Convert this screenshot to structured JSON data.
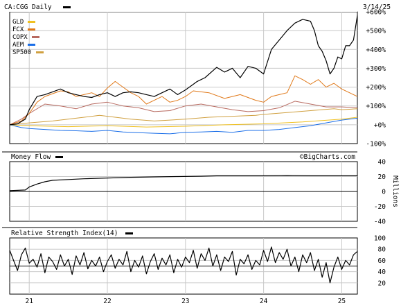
{
  "chart_data": [
    {
      "type": "line",
      "title": "CA:CGG Daily",
      "date": "3/14/25",
      "y_axis_side": "right",
      "ylim": [
        -100,
        600
      ],
      "y_ticks": [
        -100,
        0,
        100,
        200,
        300,
        400,
        500,
        600
      ],
      "y_tick_labels": [
        "-100%",
        "+0%",
        "+100%",
        "+200%",
        "+300%",
        "+400%",
        "+500%",
        "+600%"
      ],
      "grid": true,
      "legend_position": "top-left",
      "x_ticks": [
        2021,
        2022,
        2023,
        2024,
        2025
      ],
      "x_tick_labels": [
        "21",
        "22",
        "23",
        "24",
        "25"
      ],
      "xlim": [
        2020.75,
        2025.2
      ],
      "series": [
        {
          "name": "CA:CGG",
          "color": "#000000",
          "x": [
            2020.75,
            2020.85,
            2020.95,
            2021.0,
            2021.1,
            2021.2,
            2021.3,
            2021.4,
            2021.5,
            2021.6,
            2021.7,
            2021.8,
            2021.9,
            2022.0,
            2022.1,
            2022.2,
            2022.3,
            2022.4,
            2022.5,
            2022.6,
            2022.7,
            2022.8,
            2022.9,
            2023.0,
            2023.1,
            2023.15,
            2023.25,
            2023.4,
            2023.5,
            2023.6,
            2023.7,
            2023.8,
            2023.9,
            2024.0,
            2024.1,
            2024.2,
            2024.3,
            2024.4,
            2024.5,
            2024.6,
            2024.65,
            2024.7,
            2024.75,
            2024.8,
            2024.85,
            2024.9,
            2024.95,
            2025.0,
            2025.05,
            2025.1,
            2025.15,
            2025.2
          ],
          "y": [
            0,
            5,
            30,
            80,
            150,
            160,
            175,
            190,
            170,
            160,
            150,
            145,
            160,
            170,
            150,
            170,
            175,
            170,
            160,
            150,
            170,
            190,
            160,
            185,
            215,
            230,
            250,
            305,
            280,
            300,
            250,
            310,
            300,
            270,
            400,
            450,
            500,
            540,
            560,
            550,
            500,
            420,
            390,
            340,
            270,
            300,
            360,
            350,
            420,
            420,
            450,
            580
          ]
        },
        {
          "name": "GLD",
          "color": "#f0c020",
          "x": [
            2020.75,
            2021.0,
            2021.5,
            2022.0,
            2022.5,
            2023.0,
            2023.5,
            2024.0,
            2024.5,
            2025.0,
            2025.2
          ],
          "y": [
            0,
            -5,
            -10,
            -5,
            -12,
            -8,
            0,
            5,
            15,
            30,
            40
          ]
        },
        {
          "name": "FCX",
          "color": "#e07818",
          "x": [
            2020.75,
            2020.9,
            2021.0,
            2021.1,
            2021.2,
            2021.4,
            2021.5,
            2021.6,
            2021.7,
            2021.8,
            2021.9,
            2022.0,
            2022.1,
            2022.2,
            2022.3,
            2022.4,
            2022.5,
            2022.6,
            2022.7,
            2022.8,
            2022.9,
            2023.0,
            2023.1,
            2023.3,
            2023.5,
            2023.7,
            2023.9,
            2024.0,
            2024.1,
            2024.2,
            2024.3,
            2024.4,
            2024.5,
            2024.6,
            2024.7,
            2024.8,
            2024.9,
            2025.0,
            2025.1,
            2025.2
          ],
          "y": [
            0,
            20,
            60,
            120,
            150,
            180,
            175,
            150,
            160,
            170,
            150,
            195,
            230,
            200,
            170,
            150,
            110,
            130,
            150,
            120,
            130,
            150,
            180,
            170,
            140,
            160,
            130,
            120,
            150,
            160,
            170,
            260,
            240,
            215,
            240,
            200,
            220,
            190,
            170,
            150
          ]
        },
        {
          "name": "COPX",
          "color": "#b86a60",
          "x": [
            2020.75,
            2020.9,
            2021.0,
            2021.2,
            2021.4,
            2021.6,
            2021.8,
            2022.0,
            2022.2,
            2022.4,
            2022.6,
            2022.8,
            2023.0,
            2023.2,
            2023.4,
            2023.6,
            2023.8,
            2024.0,
            2024.2,
            2024.4,
            2024.6,
            2024.8,
            2025.0,
            2025.2
          ],
          "y": [
            0,
            30,
            60,
            110,
            100,
            85,
            110,
            120,
            100,
            90,
            70,
            75,
            100,
            110,
            95,
            80,
            70,
            75,
            90,
            125,
            110,
            95,
            95,
            90
          ]
        },
        {
          "name": "AEM",
          "color": "#1a6ee8",
          "x": [
            2020.75,
            2020.9,
            2021.0,
            2021.2,
            2021.4,
            2021.6,
            2021.8,
            2022.0,
            2022.2,
            2022.4,
            2022.6,
            2022.8,
            2023.0,
            2023.2,
            2023.4,
            2023.6,
            2023.8,
            2024.0,
            2024.2,
            2024.4,
            2024.6,
            2024.8,
            2025.0,
            2025.2
          ],
          "y": [
            0,
            -15,
            -20,
            -25,
            -30,
            -32,
            -35,
            -30,
            -38,
            -42,
            -45,
            -48,
            -40,
            -38,
            -35,
            -40,
            -30,
            -30,
            -25,
            -15,
            -5,
            10,
            25,
            35
          ]
        },
        {
          "name": "SP500",
          "color": "#d0a040",
          "x": [
            2020.75,
            2021.0,
            2021.3,
            2021.6,
            2021.9,
            2022.0,
            2022.3,
            2022.6,
            2022.8,
            2023.0,
            2023.3,
            2023.6,
            2023.9,
            2024.0,
            2024.3,
            2024.6,
            2024.9,
            2025.0,
            2025.2
          ],
          "y": [
            0,
            10,
            20,
            35,
            50,
            45,
            30,
            20,
            25,
            30,
            40,
            45,
            50,
            55,
            65,
            75,
            85,
            80,
            85
          ]
        }
      ]
    },
    {
      "type": "line",
      "title": "Money Flow",
      "watermark": "©BigCharts.com",
      "y_axis_side": "right",
      "ylabel": "Millions",
      "ylim": [
        -40,
        40
      ],
      "y_ticks": [
        -40,
        -20,
        0,
        20,
        40
      ],
      "y_tick_labels": [
        "-40",
        "-20",
        "0",
        "20",
        "40"
      ],
      "series": [
        {
          "name": "Money Flow",
          "color": "#000000",
          "x": [
            2020.75,
            2020.95,
            2021.0,
            2021.1,
            2021.2,
            2021.3,
            2021.5,
            2021.7,
            2022.0,
            2022.3,
            2022.6,
            2022.9,
            2023.2,
            2023.4,
            2023.6,
            2023.8,
            2024.0,
            2024.3,
            2024.6,
            2024.9,
            2025.2
          ],
          "y": [
            1,
            2,
            6,
            10,
            13,
            15,
            16,
            17,
            18,
            19,
            19.5,
            20,
            20.5,
            21,
            21,
            21,
            21,
            21.5,
            21,
            21,
            21
          ]
        }
      ]
    },
    {
      "type": "line",
      "title": "Relative Strength Index(14)",
      "y_axis_side": "right",
      "ylim": [
        0,
        100
      ],
      "y_ticks": [
        20,
        40,
        60,
        80,
        100
      ],
      "y_tick_labels": [
        "20",
        "40",
        "60",
        "80",
        "100"
      ],
      "reference_level": 50,
      "series": [
        {
          "name": "Relative Strength Index(14)",
          "color": "#000000",
          "x": [
            2020.75,
            2020.8,
            2020.85,
            2020.9,
            2020.95,
            2021.0,
            2021.05,
            2021.1,
            2021.15,
            2021.2,
            2021.25,
            2021.3,
            2021.35,
            2021.4,
            2021.45,
            2021.5,
            2021.55,
            2021.6,
            2021.65,
            2021.7,
            2021.75,
            2021.8,
            2021.85,
            2021.9,
            2021.95,
            2022.0,
            2022.05,
            2022.1,
            2022.15,
            2022.2,
            2022.25,
            2022.3,
            2022.35,
            2022.4,
            2022.45,
            2022.5,
            2022.55,
            2022.6,
            2022.65,
            2022.7,
            2022.75,
            2022.8,
            2022.85,
            2022.9,
            2022.95,
            2023.0,
            2023.05,
            2023.1,
            2023.15,
            2023.2,
            2023.25,
            2023.3,
            2023.35,
            2023.4,
            2023.45,
            2023.5,
            2023.55,
            2023.6,
            2023.65,
            2023.7,
            2023.75,
            2023.8,
            2023.85,
            2023.9,
            2023.95,
            2024.0,
            2024.05,
            2024.1,
            2024.15,
            2024.2,
            2024.25,
            2024.3,
            2024.35,
            2024.4,
            2024.45,
            2024.5,
            2024.55,
            2024.6,
            2024.65,
            2024.7,
            2024.75,
            2024.8,
            2024.85,
            2024.9,
            2024.95,
            2025.0,
            2025.05,
            2025.1,
            2025.15,
            2025.2
          ],
          "y": [
            78,
            60,
            42,
            70,
            82,
            55,
            62,
            48,
            72,
            38,
            66,
            58,
            44,
            70,
            50,
            62,
            35,
            68,
            52,
            74,
            45,
            60,
            50,
            66,
            40,
            58,
            70,
            46,
            62,
            52,
            76,
            40,
            60,
            48,
            68,
            36,
            58,
            72,
            44,
            64,
            52,
            70,
            38,
            62,
            48,
            66,
            56,
            78,
            46,
            72,
            60,
            82,
            50,
            70,
            42,
            66,
            58,
            76,
            34,
            62,
            54,
            70,
            44,
            60,
            52,
            78,
            58,
            84,
            56,
            74,
            62,
            80,
            50,
            66,
            40,
            70,
            56,
            74,
            42,
            62,
            30,
            56,
            20,
            48,
            66,
            44,
            60,
            52,
            70,
            76
          ]
        }
      ]
    }
  ]
}
